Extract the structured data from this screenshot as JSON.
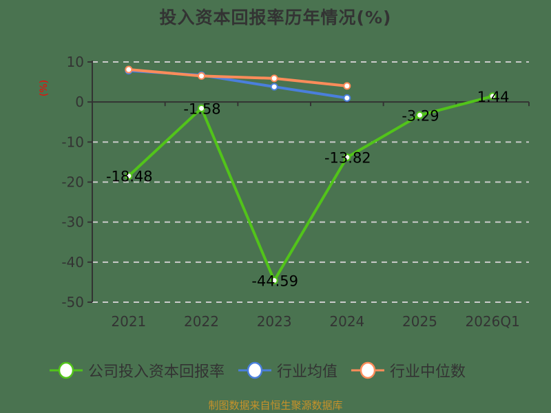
{
  "title": "投入资本回报率历年情况(%)",
  "unit_label": "(%)",
  "source": "制图数据来自恒生聚源数据库",
  "colors": {
    "background": "#4a7350",
    "company": "#52c41a",
    "industry_avg": "#4a7fdc",
    "industry_median": "#ff8c5a",
    "grid": "#cccccc",
    "axis": "#333333",
    "source_text": "#c8922a"
  },
  "legend": [
    {
      "label": "公司投入资本回报率",
      "color": "#52c41a"
    },
    {
      "label": "行业均值",
      "color": "#4a7fdc"
    },
    {
      "label": "行业中位数",
      "color": "#ff8c5a"
    }
  ],
  "chart_data": {
    "type": "line",
    "title": "投入资本回报率历年情况(%)",
    "xlabel": "",
    "ylabel": "(%)",
    "categories": [
      "2021",
      "2022",
      "2023",
      "2024",
      "2025",
      "2026Q1"
    ],
    "ylim": [
      -50,
      10
    ],
    "yticks": [
      10,
      0,
      -10,
      -20,
      -30,
      -40,
      -50
    ],
    "grid": true,
    "legend_position": "bottom",
    "series": [
      {
        "name": "公司投入资本回报率",
        "values": [
          -18.48,
          -1.58,
          -44.59,
          -13.82,
          -3.29,
          1.44
        ],
        "labels": [
          "-18.48",
          "-1.58",
          "-44.59",
          "-13.82",
          "-3.29",
          "1.44"
        ]
      },
      {
        "name": "行业均值",
        "values": [
          7.8,
          6.7,
          3.8,
          1.0,
          null,
          null
        ]
      },
      {
        "name": "行业中位数",
        "values": [
          8.1,
          6.5,
          5.9,
          4.0,
          null,
          null
        ]
      }
    ]
  }
}
